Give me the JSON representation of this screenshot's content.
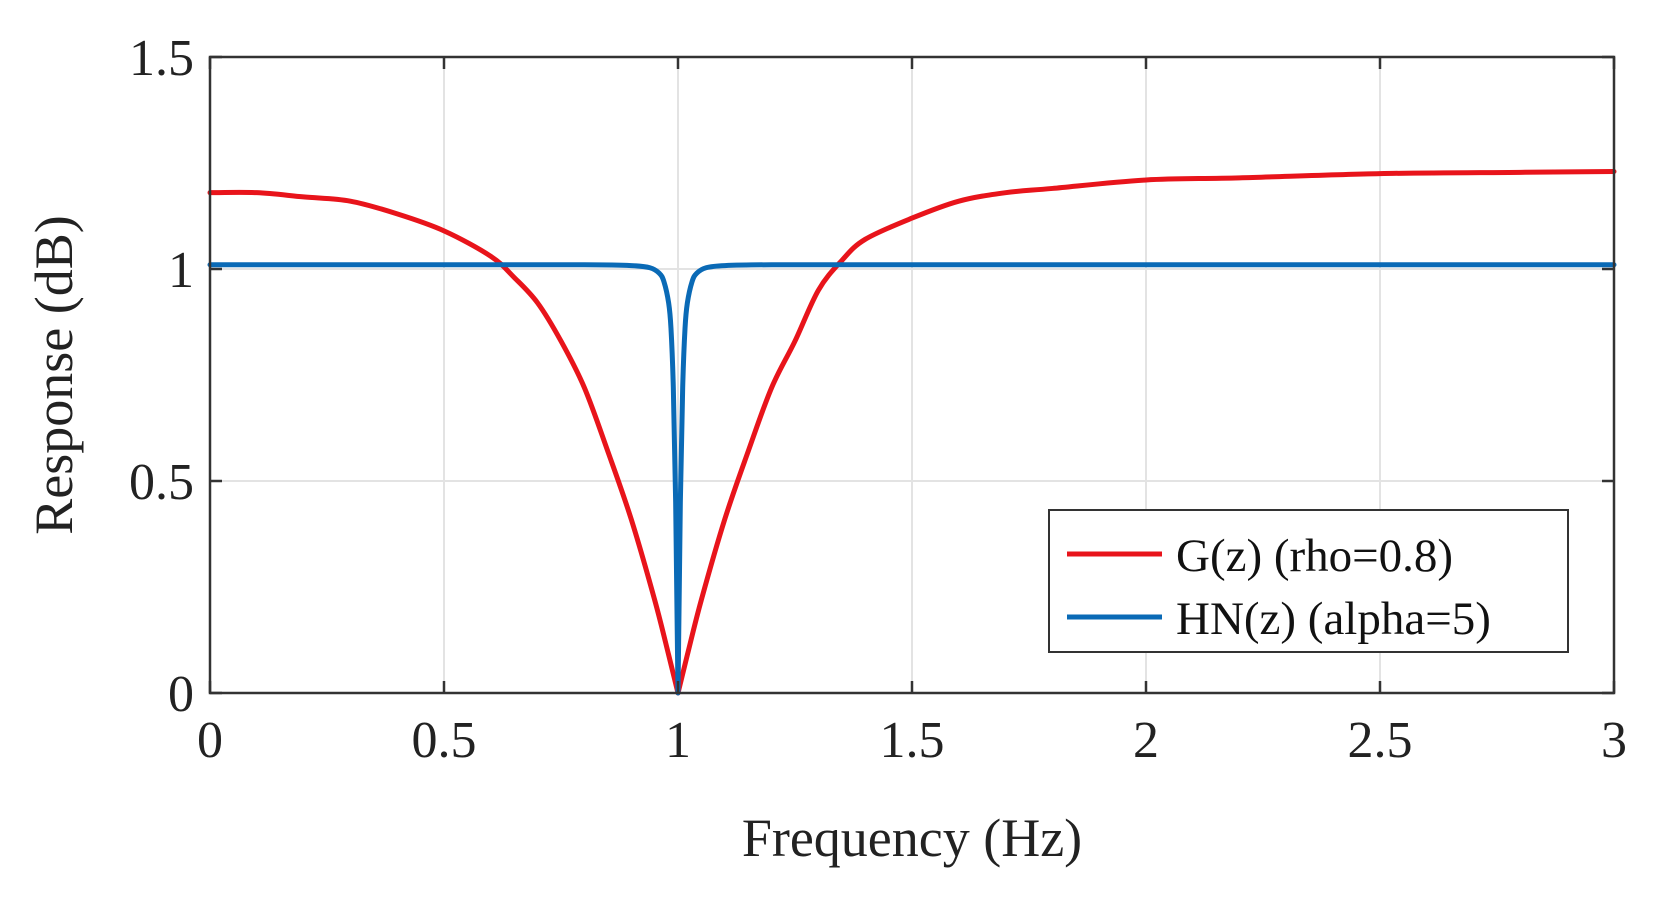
{
  "chart_data": {
    "type": "line",
    "title": "",
    "xlabel": "Frequency (Hz)",
    "ylabel": "Response (dB)",
    "xlim": [
      0,
      3
    ],
    "ylim": [
      0,
      1.5
    ],
    "xticks": [
      0,
      0.5,
      1,
      1.5,
      2,
      2.5,
      3
    ],
    "xtick_labels": [
      "0",
      "0.5",
      "1",
      "1.5",
      "2",
      "2.5",
      "3"
    ],
    "yticks": [
      0,
      0.5,
      1,
      1.5
    ],
    "ytick_labels": [
      "0",
      "0.5",
      "1",
      "1.5"
    ],
    "grid": true,
    "legend_position": "bottom-right",
    "series": [
      {
        "name": "G(z) (rho=0.8)",
        "color": "#e8141b",
        "x": [
          0,
          0.1,
          0.2,
          0.3,
          0.4,
          0.5,
          0.6,
          0.65,
          0.7,
          0.75,
          0.8,
          0.85,
          0.9,
          0.95,
          0.98,
          1.0,
          1.02,
          1.05,
          1.1,
          1.15,
          1.2,
          1.25,
          1.3,
          1.35,
          1.4,
          1.5,
          1.6,
          1.7,
          1.8,
          2.0,
          2.2,
          2.5,
          2.8,
          3.0
        ],
        "values": [
          1.18,
          1.18,
          1.17,
          1.16,
          1.13,
          1.09,
          1.03,
          0.98,
          0.92,
          0.83,
          0.72,
          0.57,
          0.41,
          0.22,
          0.09,
          0.0,
          0.09,
          0.22,
          0.41,
          0.57,
          0.72,
          0.83,
          0.95,
          1.02,
          1.07,
          1.12,
          1.16,
          1.18,
          1.19,
          1.21,
          1.215,
          1.225,
          1.228,
          1.23
        ]
      },
      {
        "name": "HN(z) (alpha=5)",
        "color": "#0a6ab6",
        "x": [
          0,
          0.5,
          0.8,
          0.9,
          0.94,
          0.96,
          0.97,
          0.98,
          0.985,
          0.99,
          0.995,
          1.0,
          1.005,
          1.01,
          1.015,
          1.02,
          1.03,
          1.04,
          1.06,
          1.1,
          1.2,
          1.5,
          2.0,
          2.5,
          3.0
        ],
        "values": [
          1.01,
          1.01,
          1.01,
          1.008,
          1.003,
          0.99,
          0.97,
          0.92,
          0.86,
          0.72,
          0.45,
          0.0,
          0.45,
          0.72,
          0.86,
          0.92,
          0.97,
          0.99,
          1.003,
          1.008,
          1.01,
          1.01,
          1.01,
          1.01,
          1.01
        ]
      }
    ]
  }
}
